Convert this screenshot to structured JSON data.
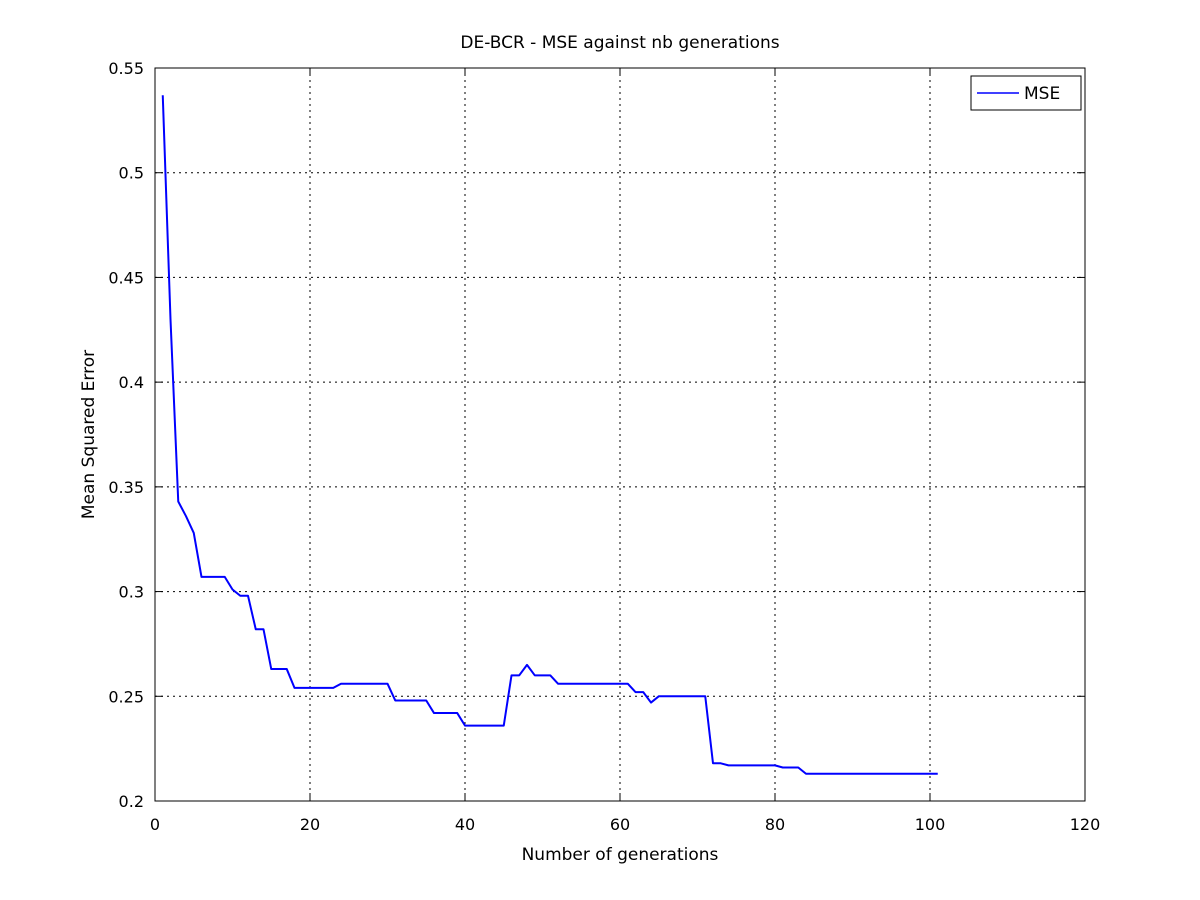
{
  "chart_data": {
    "type": "line",
    "title": "DE-BCR - MSE against nb generations",
    "xlabel": "Number of generations",
    "ylabel": "Mean Squared Error",
    "xlim": [
      0,
      120
    ],
    "ylim": [
      0.2,
      0.55
    ],
    "xticks": [
      0,
      20,
      40,
      60,
      80,
      100,
      120
    ],
    "yticks": [
      0.2,
      0.25,
      0.3,
      0.35,
      0.4,
      0.45,
      0.5,
      0.55
    ],
    "xtick_labels": [
      "0",
      "20",
      "40",
      "60",
      "80",
      "100",
      "120"
    ],
    "ytick_labels": [
      "0.2",
      "0.25",
      "0.3",
      "0.35",
      "0.4",
      "0.45",
      "0.5",
      "0.55"
    ],
    "grid": true,
    "legend_position": "top-right",
    "series": [
      {
        "name": "MSE",
        "color": "#0000ff",
        "x": [
          1,
          2,
          3,
          4,
          5,
          6,
          7,
          8,
          9,
          10,
          11,
          12,
          13,
          14,
          15,
          16,
          17,
          18,
          19,
          20,
          21,
          22,
          23,
          24,
          25,
          26,
          27,
          28,
          29,
          30,
          31,
          32,
          33,
          34,
          35,
          36,
          37,
          38,
          39,
          40,
          41,
          42,
          43,
          44,
          45,
          46,
          47,
          48,
          49,
          50,
          51,
          52,
          53,
          54,
          55,
          56,
          57,
          58,
          59,
          60,
          61,
          62,
          63,
          64,
          65,
          66,
          67,
          68,
          69,
          70,
          71,
          72,
          73,
          74,
          75,
          76,
          77,
          78,
          79,
          80,
          81,
          82,
          83,
          84,
          85,
          86,
          87,
          88,
          89,
          90,
          91,
          92,
          93,
          94,
          95,
          96,
          97,
          98,
          99,
          100,
          101
        ],
        "values": [
          0.537,
          0.43,
          0.343,
          0.336,
          0.328,
          0.307,
          0.307,
          0.307,
          0.307,
          0.301,
          0.298,
          0.298,
          0.282,
          0.282,
          0.263,
          0.263,
          0.263,
          0.254,
          0.254,
          0.254,
          0.254,
          0.254,
          0.254,
          0.256,
          0.256,
          0.256,
          0.256,
          0.256,
          0.256,
          0.256,
          0.248,
          0.248,
          0.248,
          0.248,
          0.248,
          0.242,
          0.242,
          0.242,
          0.242,
          0.236,
          0.236,
          0.236,
          0.236,
          0.236,
          0.236,
          0.26,
          0.26,
          0.265,
          0.26,
          0.26,
          0.26,
          0.256,
          0.256,
          0.256,
          0.256,
          0.256,
          0.256,
          0.256,
          0.256,
          0.256,
          0.256,
          0.252,
          0.252,
          0.247,
          0.25,
          0.25,
          0.25,
          0.25,
          0.25,
          0.25,
          0.25,
          0.218,
          0.218,
          0.217,
          0.217,
          0.217,
          0.217,
          0.217,
          0.217,
          0.217,
          0.216,
          0.216,
          0.216,
          0.213,
          0.213,
          0.213,
          0.213,
          0.213,
          0.213,
          0.213,
          0.213,
          0.213,
          0.213,
          0.213,
          0.213,
          0.213,
          0.213,
          0.213,
          0.213,
          0.213,
          0.213
        ]
      }
    ]
  }
}
